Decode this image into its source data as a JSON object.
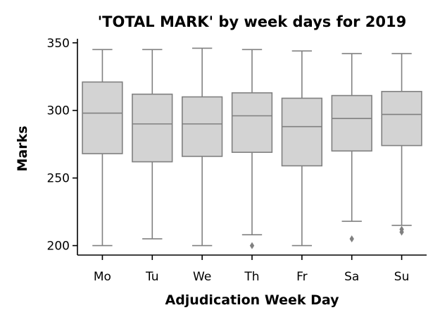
{
  "chart_data": {
    "type": "box",
    "title": "'TOTAL MARK' by week days for 2019",
    "xlabel": "Adjudication Week Day",
    "ylabel": "Marks",
    "ylim": [
      193,
      353
    ],
    "yticks": [
      200,
      250,
      300,
      350
    ],
    "grid": false,
    "categories": [
      "Mo",
      "Tu",
      "We",
      "Th",
      "Fr",
      "Sa",
      "Su"
    ],
    "boxes": [
      {
        "label": "Mo",
        "whisker_low": 200,
        "q1": 268,
        "median": 298,
        "q3": 321,
        "whisker_high": 345,
        "outliers": []
      },
      {
        "label": "Tu",
        "whisker_low": 205,
        "q1": 262,
        "median": 290,
        "q3": 312,
        "whisker_high": 345,
        "outliers": []
      },
      {
        "label": "We",
        "whisker_low": 200,
        "q1": 266,
        "median": 290,
        "q3": 310,
        "whisker_high": 346,
        "outliers": []
      },
      {
        "label": "Th",
        "whisker_low": 208,
        "q1": 269,
        "median": 296,
        "q3": 313,
        "whisker_high": 345,
        "outliers": [
          200
        ]
      },
      {
        "label": "Fr",
        "whisker_low": 200,
        "q1": 259,
        "median": 288,
        "q3": 309,
        "whisker_high": 344,
        "outliers": []
      },
      {
        "label": "Sa",
        "whisker_low": 218,
        "q1": 270,
        "median": 294,
        "q3": 311,
        "whisker_high": 342,
        "outliers": [
          205
        ]
      },
      {
        "label": "Su",
        "whisker_low": 215,
        "q1": 274,
        "median": 297,
        "q3": 314,
        "whisker_high": 342,
        "outliers": [
          210,
          212
        ]
      }
    ],
    "colors": {
      "box_fill": "#d3d3d3",
      "box_edge": "#808080",
      "axis": "#000000"
    }
  }
}
